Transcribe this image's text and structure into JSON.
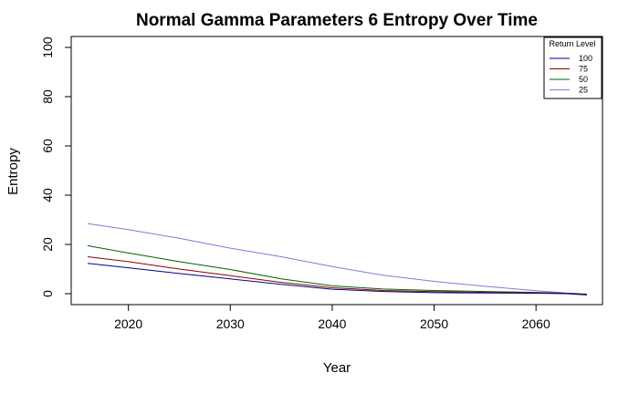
{
  "chart_data": {
    "type": "line",
    "title": "Normal Gamma Parameters 6 Entropy Over Time",
    "xlabel": "Year",
    "ylabel": "Entropy",
    "xlim": [
      2016,
      2065
    ],
    "ylim": [
      0,
      100
    ],
    "xticks": [
      2020,
      2030,
      2040,
      2050,
      2060
    ],
    "yticks": [
      0,
      20,
      40,
      60,
      80,
      100
    ],
    "grid": false,
    "legend": {
      "title": "Return Level",
      "placement": "top-right"
    },
    "x": [
      2016,
      2020,
      2025,
      2030,
      2035,
      2040,
      2045,
      2050,
      2055,
      2060,
      2063,
      2065
    ],
    "series": [
      {
        "name": "100",
        "color": "#00008b",
        "values": [
          12.3,
          10.5,
          8.2,
          6.0,
          3.8,
          1.8,
          0.9,
          0.4,
          0.3,
          0.2,
          0.0,
          -0.5
        ]
      },
      {
        "name": "75",
        "color": "#8b0000",
        "values": [
          15.0,
          13.0,
          10.0,
          7.3,
          4.6,
          2.4,
          1.3,
          0.8,
          0.5,
          0.3,
          0.1,
          -0.3
        ]
      },
      {
        "name": "50",
        "color": "#006400",
        "values": [
          19.5,
          16.5,
          13.0,
          9.8,
          6.0,
          3.2,
          1.9,
          1.3,
          0.9,
          0.5,
          0.2,
          -0.2
        ]
      },
      {
        "name": "25",
        "color": "#9370db",
        "values": [
          28.5,
          26.0,
          22.5,
          18.5,
          15.0,
          11.0,
          7.5,
          5.0,
          3.0,
          1.2,
          0.3,
          -0.3
        ]
      }
    ]
  }
}
